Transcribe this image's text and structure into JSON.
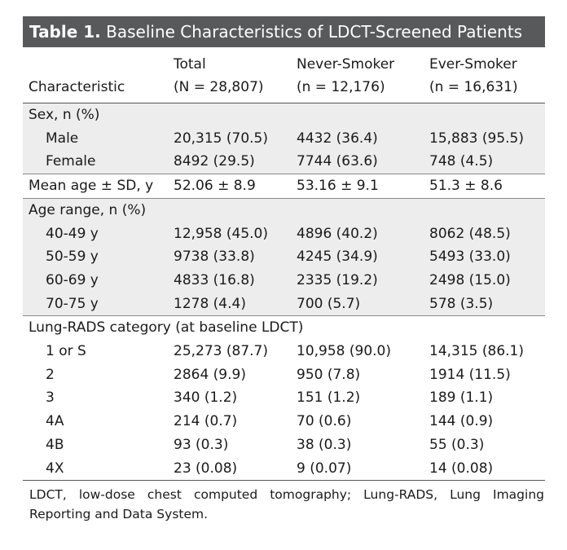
{
  "table": {
    "label": "Table 1.",
    "title": "Baseline Characteristics of LDCT-Screened Patients",
    "columns": [
      {
        "line1": "",
        "line2": "Characteristic"
      },
      {
        "line1": "Total",
        "line2": "(N = 28,807)"
      },
      {
        "line1": "Never-Smoker",
        "line2": "(n = 12,176)"
      },
      {
        "line1": "Ever-Smoker",
        "line2": "(n = 16,631)"
      }
    ],
    "rows": [
      {
        "label": "Sex, n (%)",
        "total": "",
        "never": "",
        "ever": "",
        "kind": "section",
        "shade": true,
        "top": true
      },
      {
        "label": "Male",
        "total": "20,315 (70.5)",
        "never": "4432 (36.4)",
        "ever": "15,883 (95.5)",
        "kind": "sub",
        "shade": true
      },
      {
        "label": "Female",
        "total": "8492 (29.5)",
        "never": "7744 (63.6)",
        "ever": "748 (4.5)",
        "kind": "sub",
        "shade": true
      },
      {
        "label": "Mean age ± SD, y",
        "total": "52.06 ± 8.9",
        "never": "53.16 ± 9.1",
        "ever": "51.3 ± 8.6",
        "kind": "section",
        "shade": false,
        "top": true
      },
      {
        "label": "Age range, n (%)",
        "total": "",
        "never": "",
        "ever": "",
        "kind": "section",
        "shade": true,
        "top": true
      },
      {
        "label": "40-49 y",
        "total": "12,958 (45.0)",
        "never": "4896 (40.2)",
        "ever": "8062 (48.5)",
        "kind": "sub",
        "shade": true
      },
      {
        "label": "50-59 y",
        "total": "9738 (33.8)",
        "never": "4245 (34.9)",
        "ever": "5493 (33.0)",
        "kind": "sub",
        "shade": true
      },
      {
        "label": "60-69 y",
        "total": "4833 (16.8)",
        "never": "2335 (19.2)",
        "ever": "2498 (15.0)",
        "kind": "sub",
        "shade": true
      },
      {
        "label": "70-75 y",
        "total": "1278 (4.4)",
        "never": "700 (5.7)",
        "ever": "578 (3.5)",
        "kind": "sub",
        "shade": true
      },
      {
        "label": "Lung-RADS category (at baseline LDCT)",
        "total": "",
        "never": "",
        "ever": "",
        "kind": "wide",
        "shade": false,
        "top": true
      },
      {
        "label": "1 or S",
        "total": "25,273 (87.7)",
        "never": "10,958 (90.0)",
        "ever": "14,315 (86.1)",
        "kind": "sub",
        "shade": false
      },
      {
        "label": "2",
        "total": "2864 (9.9)",
        "never": "950 (7.8)",
        "ever": "1914 (11.5)",
        "kind": "sub",
        "shade": false
      },
      {
        "label": "3",
        "total": "340 (1.2)",
        "never": "151 (1.2)",
        "ever": "189 (1.1)",
        "kind": "sub",
        "shade": false
      },
      {
        "label": "4A",
        "total": "214 (0.7)",
        "never": "70 (0.6)",
        "ever": "144 (0.9)",
        "kind": "sub",
        "shade": false
      },
      {
        "label": "4B",
        "total": "93 (0.3)",
        "never": "38 (0.3)",
        "ever": "55 (0.3)",
        "kind": "sub",
        "shade": false
      },
      {
        "label": "4X",
        "total": "23 (0.08)",
        "never": "9 (0.07)",
        "ever": "14 (0.08)",
        "kind": "sub",
        "shade": false
      }
    ],
    "footnote": "LDCT, low-dose chest computed tomography; Lung-RADS, Lung Imaging Reporting and Data System."
  },
  "colors": {
    "title_bg": "#58595b",
    "shade": "#ededed"
  }
}
